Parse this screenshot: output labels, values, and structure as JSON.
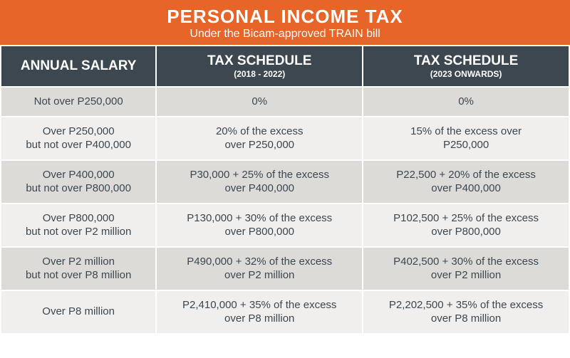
{
  "header": {
    "title": "PERSONAL INCOME TAX",
    "subtitle": "Under the Bicam-approved TRAIN bill"
  },
  "table": {
    "columns": [
      {
        "title": "ANNUAL SALARY",
        "sub": ""
      },
      {
        "title": "TAX SCHEDULE",
        "sub": "(2018 - 2022)"
      },
      {
        "title": "TAX SCHEDULE",
        "sub": "(2023 ONWARDS)"
      }
    ],
    "rows": [
      {
        "salary": "Not over P250,000",
        "sched1": "0%",
        "sched2": "0%"
      },
      {
        "salary": "Over P250,000\nbut not over P400,000",
        "sched1": "20% of the excess\nover P250,000",
        "sched2": "15% of the excess over\nP250,000"
      },
      {
        "salary": "Over P400,000\nbut not over P800,000",
        "sched1": "P30,000 + 25% of the excess\nover P400,000",
        "sched2": "P22,500 + 20% of the excess\nover P400,000"
      },
      {
        "salary": "Over P800,000\nbut not over P2 million",
        "sched1": "P130,000 + 30% of the excess\nover P800,000",
        "sched2": "P102,500 + 25% of the excess\nover P800,000"
      },
      {
        "salary": "Over P2 million\nbut not over P8 million",
        "sched1": "P490,000 + 32% of the excess\nover P2 million",
        "sched2": "P402,500 + 30% of the excess\nover P2 million"
      },
      {
        "salary": "Over P8 million",
        "sched1": "P2,410,000 + 35% of the excess\nover P8 million",
        "sched2": "P2,202,500 + 35% of the excess\nover P8 million"
      }
    ],
    "colors": {
      "header_bg": "#e8652a",
      "th_bg": "#3d4750",
      "row_even": "#dcdbd8",
      "row_odd": "#f0efed",
      "text": "#3d4750",
      "border": "#ffffff"
    }
  }
}
